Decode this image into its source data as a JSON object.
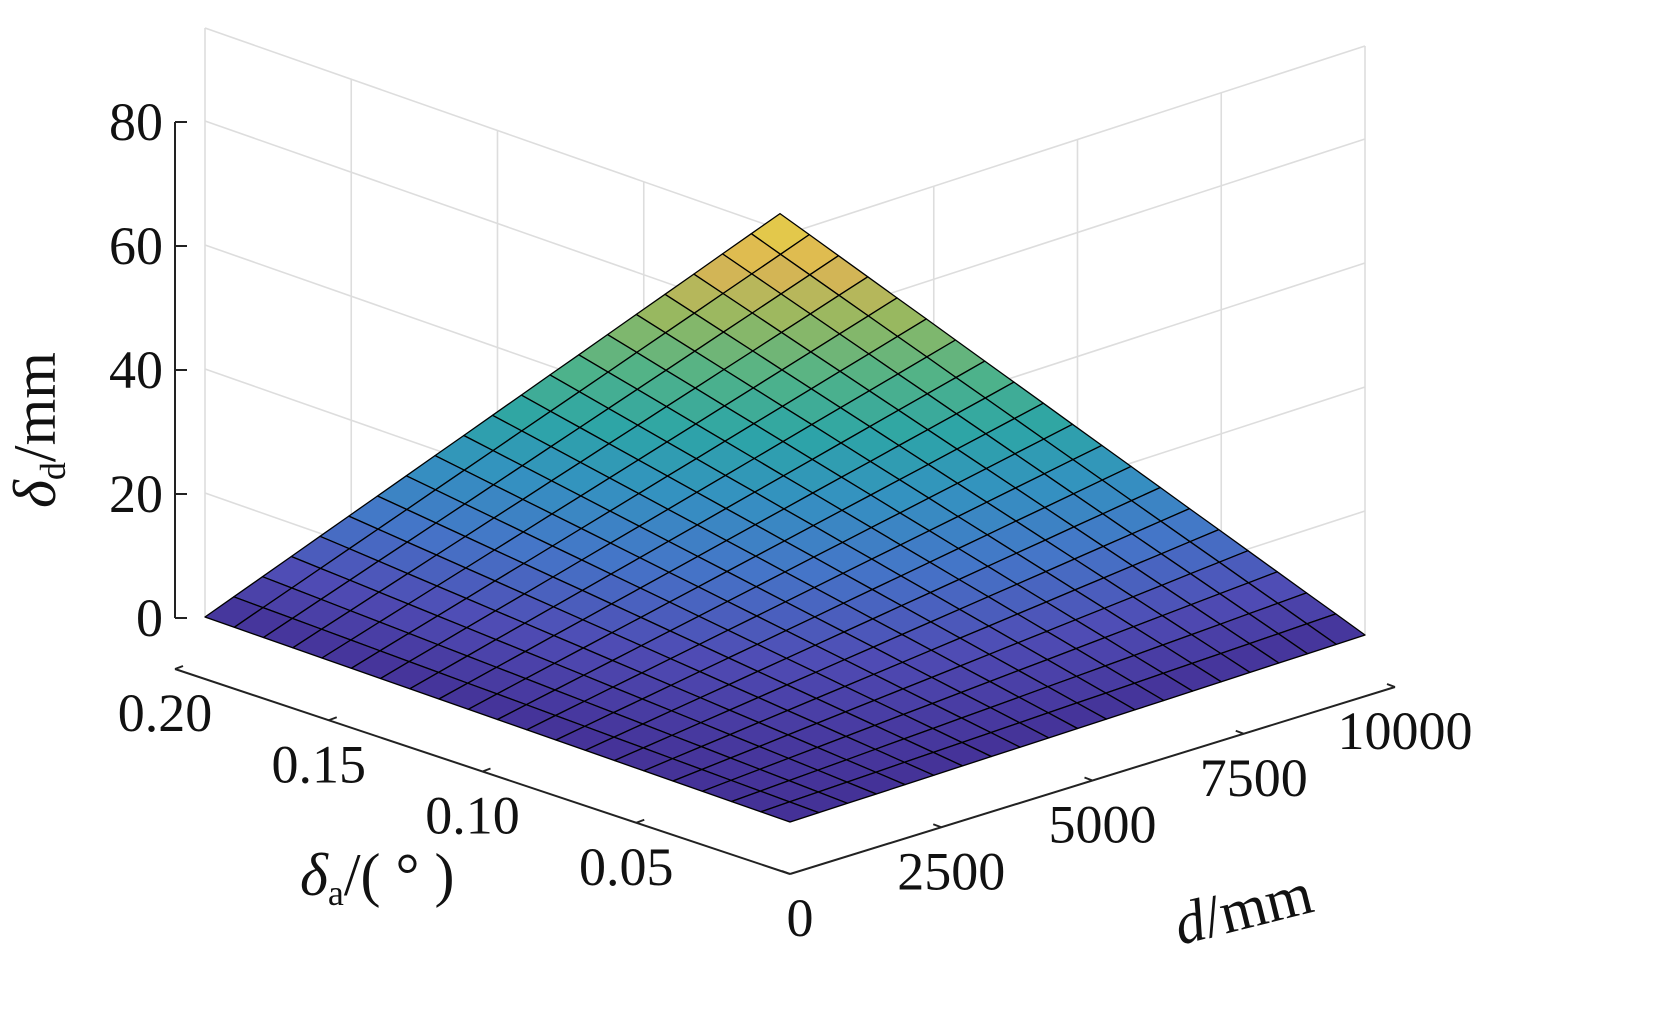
{
  "chart_data": {
    "type": "surface",
    "xlabel": {
      "symbol": "d",
      "unit": "/mm"
    },
    "ylabel": {
      "symbol": "δ",
      "subscript": "a",
      "unit": "/( ° )"
    },
    "zlabel": {
      "symbol": "δ",
      "subscript": "d",
      "unit": "/mm"
    },
    "x_ticks": [
      "0",
      "2500",
      "5000",
      "7500",
      "10000"
    ],
    "y_ticks": [
      "0.20",
      "0.15",
      "0.10",
      "0.05"
    ],
    "z_ticks": [
      "0",
      "20",
      "40",
      "60",
      "80"
    ],
    "x_range": [
      0,
      10000
    ],
    "y_range": [
      0,
      0.2
    ],
    "z_range": [
      0,
      80
    ],
    "grid": true,
    "colormap": "parula",
    "grid_divisions": 20,
    "function": "delta_d = d * tan(delta_a)",
    "surface": {
      "x": [
        0,
        500,
        1000,
        1500,
        2000,
        2500,
        3000,
        3500,
        4000,
        4500,
        5000,
        5500,
        6000,
        6500,
        7000,
        7500,
        8000,
        8500,
        9000,
        9500,
        10000
      ],
      "y": [
        0,
        0.01,
        0.02,
        0.03,
        0.04,
        0.05,
        0.06,
        0.07,
        0.08,
        0.09,
        0.1,
        0.11,
        0.12,
        0.13,
        0.14,
        0.15,
        0.16,
        0.17,
        0.18,
        0.19,
        0.2
      ],
      "z_corners": {
        "x0_y0": 0,
        "x10000_y0": 0,
        "x0_y0.2": 0,
        "x10000_y0.2": 34.9
      }
    },
    "colors": {
      "low": "#3e2a7a",
      "mid": "#2fa3a2",
      "high": "#f3d345",
      "mesh": "#000000",
      "gridline": "#dddddd"
    }
  }
}
